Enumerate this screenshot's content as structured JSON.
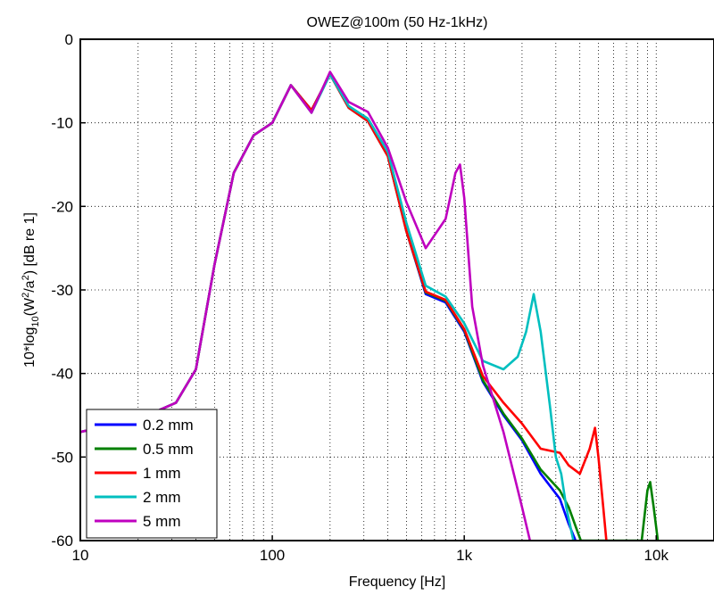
{
  "chart_data": {
    "type": "line",
    "title": "OWEZ@100m (50 Hz-1kHz)",
    "xlabel": "Frequency [Hz]",
    "ylabel": {
      "prefix": "10*log",
      "sub": "10",
      "mid1": "(W",
      "sup1": "2",
      "mid2": "/a",
      "sup2": "2",
      "suffix": ") [dB re 1]"
    },
    "x_scale": "log",
    "xlim": [
      10,
      20000
    ],
    "ylim": [
      -60,
      0
    ],
    "grid": true,
    "legend_position": "bottom-left",
    "x_ticks": [
      {
        "value": 10,
        "label": "10"
      },
      {
        "value": 100,
        "label": "100"
      },
      {
        "value": 1000,
        "label": "1k"
      },
      {
        "value": 10000,
        "label": "10k"
      }
    ],
    "y_ticks": [
      {
        "value": 0,
        "label": "0"
      },
      {
        "value": -10,
        "label": "-10"
      },
      {
        "value": -20,
        "label": "-20"
      },
      {
        "value": -30,
        "label": "-30"
      },
      {
        "value": -40,
        "label": "-40"
      },
      {
        "value": -50,
        "label": "-50"
      },
      {
        "value": -60,
        "label": "-60"
      }
    ],
    "series": [
      {
        "name": "0.2 mm",
        "color": "#0000ff",
        "points": [
          [
            10,
            -47
          ],
          [
            20,
            -45.5
          ],
          [
            31.5,
            -43.5
          ],
          [
            40,
            -39.5
          ],
          [
            50,
            -27
          ],
          [
            63,
            -16
          ],
          [
            80,
            -11.5
          ],
          [
            100,
            -10
          ],
          [
            125,
            -5.5
          ],
          [
            160,
            -8.5
          ],
          [
            200,
            -4.2
          ],
          [
            250,
            -8.2
          ],
          [
            315,
            -9.8
          ],
          [
            400,
            -14
          ],
          [
            500,
            -23
          ],
          [
            630,
            -30.5
          ],
          [
            800,
            -31.5
          ],
          [
            1000,
            -35
          ],
          [
            1250,
            -41
          ],
          [
            1600,
            -45
          ],
          [
            2000,
            -48
          ],
          [
            2500,
            -52
          ],
          [
            3150,
            -55
          ],
          [
            3500,
            -58
          ],
          [
            3800,
            -60
          ]
        ]
      },
      {
        "name": "0.5 mm",
        "color": "#008000",
        "points": [
          [
            10,
            -47
          ],
          [
            20,
            -45.5
          ],
          [
            31.5,
            -43.5
          ],
          [
            40,
            -39.5
          ],
          [
            50,
            -27
          ],
          [
            63,
            -16
          ],
          [
            80,
            -11.5
          ],
          [
            100,
            -10
          ],
          [
            125,
            -5.5
          ],
          [
            160,
            -8.5
          ],
          [
            200,
            -4.2
          ],
          [
            250,
            -8.2
          ],
          [
            315,
            -9.8
          ],
          [
            400,
            -14
          ],
          [
            500,
            -23
          ],
          [
            630,
            -30.3
          ],
          [
            800,
            -31.3
          ],
          [
            1000,
            -34.8
          ],
          [
            1250,
            -40.8
          ],
          [
            1600,
            -44.8
          ],
          [
            2000,
            -47.8
          ],
          [
            2500,
            -51.5
          ],
          [
            3150,
            -54
          ],
          [
            3500,
            -56
          ],
          [
            3900,
            -59
          ],
          [
            4050,
            -60
          ],
          [
            8400,
            -60
          ],
          [
            9000,
            -54
          ],
          [
            9300,
            -53
          ],
          [
            9700,
            -56
          ],
          [
            10200,
            -60
          ]
        ]
      },
      {
        "name": "1 mm",
        "color": "#ff0000",
        "points": [
          [
            10,
            -47
          ],
          [
            20,
            -45.5
          ],
          [
            31.5,
            -43.5
          ],
          [
            40,
            -39.5
          ],
          [
            50,
            -27
          ],
          [
            63,
            -16
          ],
          [
            80,
            -11.5
          ],
          [
            100,
            -10
          ],
          [
            125,
            -5.5
          ],
          [
            160,
            -8.5
          ],
          [
            200,
            -4.2
          ],
          [
            250,
            -8.2
          ],
          [
            315,
            -9.8
          ],
          [
            400,
            -14
          ],
          [
            500,
            -23
          ],
          [
            630,
            -30.2
          ],
          [
            800,
            -31.2
          ],
          [
            1000,
            -34.7
          ],
          [
            1250,
            -40.3
          ],
          [
            1600,
            -43.5
          ],
          [
            2000,
            -46
          ],
          [
            2500,
            -49
          ],
          [
            3150,
            -49.5
          ],
          [
            3500,
            -51
          ],
          [
            4000,
            -52
          ],
          [
            4500,
            -49
          ],
          [
            4800,
            -46.5
          ],
          [
            5000,
            -50
          ],
          [
            5300,
            -56
          ],
          [
            5500,
            -60
          ]
        ]
      },
      {
        "name": "2 mm",
        "color": "#00bfbf",
        "points": [
          [
            10,
            -47
          ],
          [
            20,
            -45.5
          ],
          [
            31.5,
            -43.5
          ],
          [
            40,
            -39.5
          ],
          [
            50,
            -27
          ],
          [
            63,
            -16
          ],
          [
            80,
            -11.5
          ],
          [
            100,
            -10
          ],
          [
            125,
            -5.5
          ],
          [
            160,
            -8.8
          ],
          [
            200,
            -4.2
          ],
          [
            250,
            -8
          ],
          [
            315,
            -9.5
          ],
          [
            400,
            -13.5
          ],
          [
            500,
            -22
          ],
          [
            630,
            -29.5
          ],
          [
            800,
            -30.8
          ],
          [
            1000,
            -34
          ],
          [
            1250,
            -38.5
          ],
          [
            1600,
            -39.5
          ],
          [
            1900,
            -38
          ],
          [
            2100,
            -35
          ],
          [
            2300,
            -30.5
          ],
          [
            2500,
            -35
          ],
          [
            2800,
            -44
          ],
          [
            3000,
            -50
          ],
          [
            3200,
            -52
          ],
          [
            3400,
            -56
          ],
          [
            3700,
            -60
          ]
        ]
      },
      {
        "name": "5 mm",
        "color": "#bf00bf",
        "points": [
          [
            10,
            -47
          ],
          [
            20,
            -45.5
          ],
          [
            31.5,
            -43.5
          ],
          [
            40,
            -39.5
          ],
          [
            50,
            -27
          ],
          [
            63,
            -16
          ],
          [
            80,
            -11.5
          ],
          [
            100,
            -10
          ],
          [
            125,
            -5.5
          ],
          [
            160,
            -8.8
          ],
          [
            200,
            -3.9
          ],
          [
            250,
            -7.5
          ],
          [
            315,
            -8.7
          ],
          [
            400,
            -13
          ],
          [
            500,
            -19.5
          ],
          [
            630,
            -25
          ],
          [
            800,
            -21.5
          ],
          [
            900,
            -16
          ],
          [
            950,
            -15
          ],
          [
            1000,
            -19
          ],
          [
            1100,
            -32
          ],
          [
            1250,
            -39
          ],
          [
            1600,
            -47
          ],
          [
            2000,
            -56
          ],
          [
            2200,
            -60
          ]
        ]
      }
    ]
  }
}
